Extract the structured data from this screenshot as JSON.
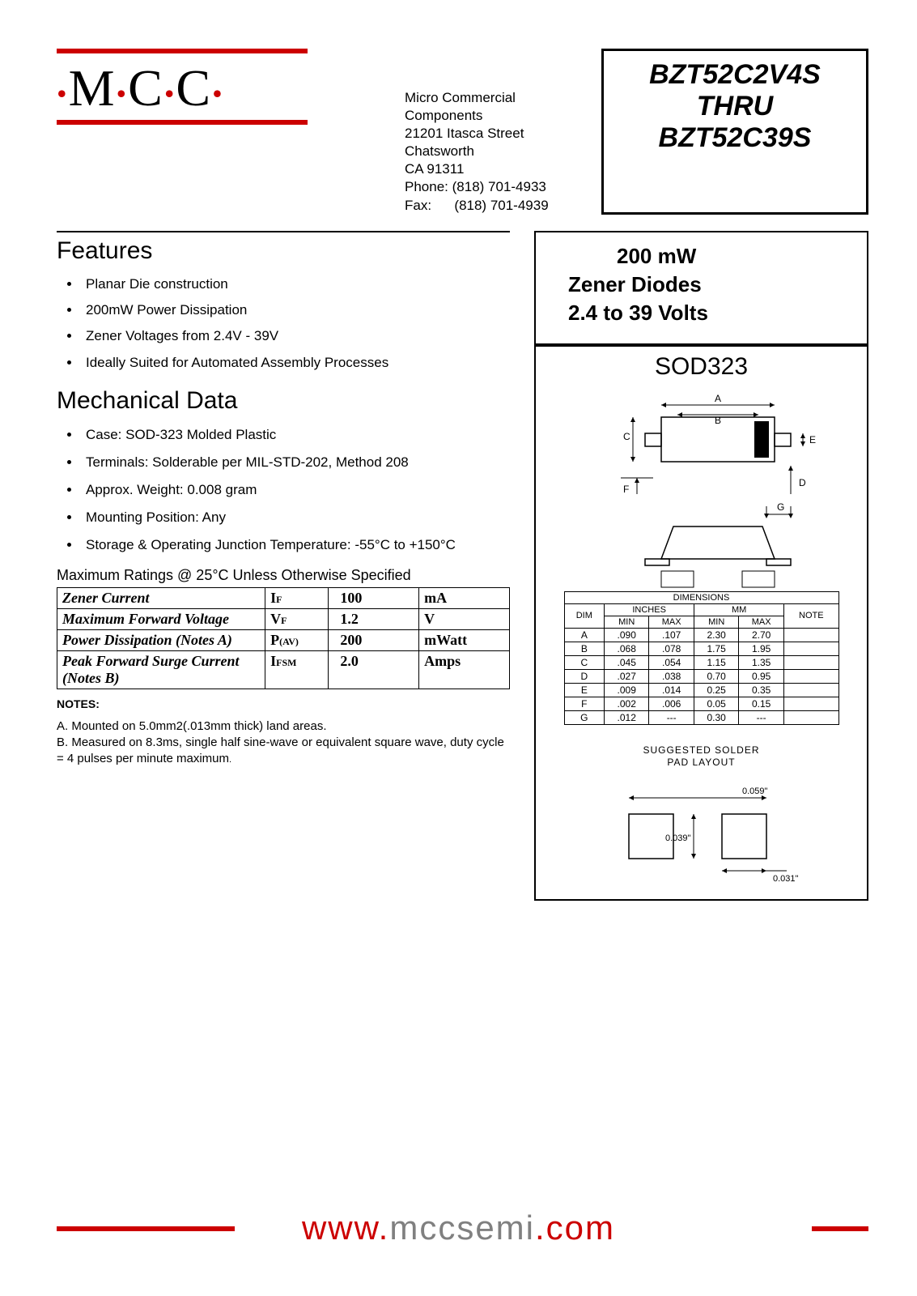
{
  "logo": {
    "text_parts": [
      "M",
      "C",
      "C"
    ]
  },
  "address": {
    "company": "Micro Commercial Components",
    "street": "21201 Itasca Street Chatsworth",
    "city": "CA 91311",
    "phone_label": "Phone:",
    "phone": "(818) 701-4933",
    "fax_label": "Fax:",
    "fax": "(818) 701-4939"
  },
  "partnum": {
    "line1": "BZT52C2V4S",
    "line2": "THRU",
    "line3": "BZT52C39S"
  },
  "features": {
    "heading": "Features",
    "items": [
      "Planar Die construction",
      "200mW Power Dissipation",
      "Zener Voltages from 2.4V - 39V",
      "Ideally Suited for Automated Assembly Processes"
    ]
  },
  "mech": {
    "heading": "Mechanical Data",
    "items": [
      "Case:   SOD-323 Molded Plastic",
      "Terminals: Solderable per MIL-STD-202, Method 208",
      "Approx. Weight: 0.008 gram",
      "Mounting Position: Any",
      "Storage & Operating Junction Temperature:   -55°C to +150°C"
    ]
  },
  "ratings": {
    "caption": "Maximum Ratings @ 25°C Unless Otherwise Specified",
    "rows": [
      {
        "param": "Zener Current",
        "sym": "I",
        "sub": "F",
        "val": "100",
        "unit": "mA"
      },
      {
        "param": "Maximum Forward Voltage",
        "sym": "V",
        "sub": "F",
        "val": "1.2",
        "unit": "V"
      },
      {
        "param": "Power Dissipation (Notes A)",
        "sym": "P",
        "sub": "(AV)",
        "val": "200",
        "unit": "mWatt"
      },
      {
        "param": "Peak Forward Surge Current (Notes B)",
        "sym": "I",
        "sub": "FSM",
        "val": "2.0",
        "unit": "Amps"
      }
    ]
  },
  "notes": {
    "heading": "NOTES:",
    "a": "A. Mounted on 5.0mm2(.013mm thick) land areas.",
    "b": "B. Measured on 8.3ms, single half sine-wave or equivalent square wave, duty cycle = 4 pulses per minute maximum"
  },
  "desc": {
    "line1": "200 mW",
    "line2": "Zener Diodes",
    "line3": "2.4 to 39 Volts"
  },
  "pkg": {
    "title": "SOD323"
  },
  "diagram": {
    "labels": [
      "A",
      "B",
      "C",
      "D",
      "E",
      "F",
      "G"
    ],
    "colors": {
      "stroke": "#000000",
      "cathode": "#000000"
    }
  },
  "dimensions": {
    "header_top": "DIMENSIONS",
    "cols": [
      "DIM",
      "INCHES",
      "MM",
      "NOTE"
    ],
    "subcols": [
      "MIN",
      "MAX",
      "MIN",
      "MAX"
    ],
    "rows": [
      [
        "A",
        ".090",
        ".107",
        "2.30",
        "2.70",
        ""
      ],
      [
        "B",
        ".068",
        ".078",
        "1.75",
        "1.95",
        ""
      ],
      [
        "C",
        ".045",
        ".054",
        "1.15",
        "1.35",
        ""
      ],
      [
        "D",
        ".027",
        ".038",
        "0.70",
        "0.95",
        ""
      ],
      [
        "E",
        ".009",
        ".014",
        "0.25",
        "0.35",
        ""
      ],
      [
        "F",
        ".002",
        ".006",
        "0.05",
        "0.15",
        ""
      ],
      [
        "G",
        ".012",
        "---",
        "0.30",
        "---",
        ""
      ]
    ]
  },
  "solder": {
    "title1": "SUGGESTED SOLDER",
    "title2": "PAD LAYOUT",
    "dims": {
      "width": "0.059\"",
      "height": "0.039\"",
      "gap": "0.031\""
    }
  },
  "footer": {
    "www": "www.",
    "mid": "mccsemi",
    "com": ".com"
  },
  "colors": {
    "red": "#cc0000",
    "gray": "#808080",
    "black": "#000000"
  }
}
